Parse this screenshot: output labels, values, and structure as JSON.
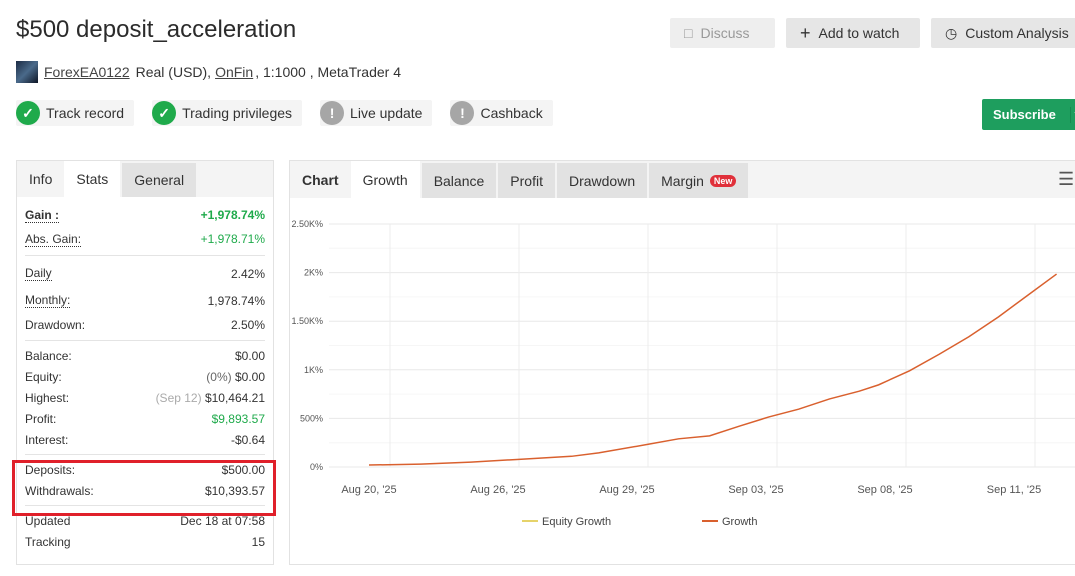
{
  "title": "$500 deposit_acceleration",
  "actions": {
    "discuss": "Discuss",
    "add_watch": "Add to watch",
    "custom": "Custom Analysis",
    "subscribe": "Subscribe"
  },
  "meta": {
    "user": "ForexEA0122",
    "type": "Real (USD),",
    "broker": "OnFin",
    "rest": ", 1:1000 , MetaTrader 4"
  },
  "badges": [
    {
      "label": "Track record",
      "status": "ok"
    },
    {
      "label": "Trading privileges",
      "status": "ok"
    },
    {
      "label": "Live update",
      "status": "warn"
    },
    {
      "label": "Cashback",
      "status": "warn"
    }
  ],
  "left_tabs": [
    "Info",
    "Stats",
    "General"
  ],
  "stats": {
    "gain": {
      "label": "Gain :",
      "value": "+1,978.74%"
    },
    "abs_gain": {
      "label": "Abs. Gain:",
      "value": "+1,978.71%"
    },
    "daily": {
      "label": "Daily",
      "value": "2.42%"
    },
    "monthly": {
      "label": "Monthly:",
      "value": "1,978.74%"
    },
    "drawdown": {
      "label": "Drawdown:",
      "value": "2.50%"
    },
    "balance": {
      "label": "Balance:",
      "value": "$0.00"
    },
    "equity": {
      "label": "Equity:",
      "note": "(0%)",
      "value": "$0.00"
    },
    "highest": {
      "label": "Highest:",
      "note": "(Sep 12)",
      "value": "$10,464.21"
    },
    "profit": {
      "label": "Profit:",
      "value": "$9,893.57"
    },
    "interest": {
      "label": "Interest:",
      "value": "-$0.64"
    },
    "deposits": {
      "label": "Deposits:",
      "value": "$500.00"
    },
    "withdrawals": {
      "label": "Withdrawals:",
      "value": "$10,393.57"
    },
    "updated": {
      "label": "Updated",
      "value": "Dec 18 at 07:58"
    },
    "tracking": {
      "label": "Tracking",
      "value": "15"
    }
  },
  "chart_tabs": {
    "label": "Chart",
    "tabs": [
      "Growth",
      "Balance",
      "Profit",
      "Drawdown",
      "Margin"
    ],
    "new_badge": "New"
  },
  "chart_data": {
    "type": "line",
    "ylim": [
      0,
      2500
    ],
    "yticks": [
      "0%",
      "500%",
      "1K%",
      "1.50K%",
      "2K%",
      "2.50K%"
    ],
    "ytick_values": [
      0,
      500,
      1000,
      1500,
      2000,
      2500
    ],
    "xticks": [
      "Aug 20, '25",
      "Aug 26, '25",
      "Aug 29, '25",
      "Sep 03, '25",
      "Sep 08, '25",
      "Sep 11, '25"
    ],
    "grid": true,
    "legend_position": "bottom",
    "series": [
      {
        "name": "Equity Growth",
        "color": "#e6d36a",
        "points": []
      },
      {
        "name": "Growth",
        "color": "#d9602e",
        "points": [
          [
            0,
            20
          ],
          [
            0.4,
            30
          ],
          [
            0.79,
            50
          ],
          [
            1.18,
            80
          ],
          [
            1.57,
            110
          ],
          [
            1.78,
            145
          ],
          [
            2.17,
            235
          ],
          [
            2.4,
            290
          ],
          [
            2.64,
            320
          ],
          [
            2.87,
            420
          ],
          [
            3.1,
            515
          ],
          [
            3.33,
            595
          ],
          [
            3.57,
            700
          ],
          [
            3.8,
            780
          ],
          [
            3.95,
            845
          ],
          [
            4.19,
            990
          ],
          [
            4.42,
            1160
          ],
          [
            4.65,
            1340
          ],
          [
            4.88,
            1545
          ],
          [
            5.12,
            1780
          ],
          [
            5.33,
            1985
          ]
        ]
      }
    ]
  }
}
